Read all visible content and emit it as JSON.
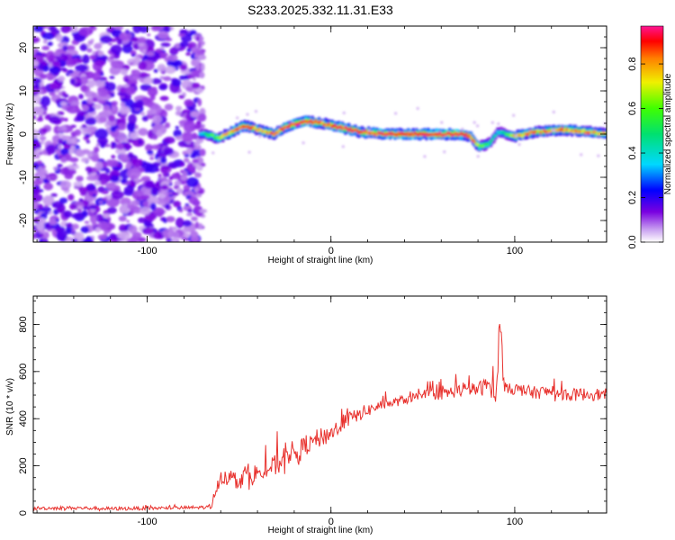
{
  "title": "S233.2025.332.11.31.E33",
  "chart_data": [
    {
      "type": "heatmap",
      "title": "S233.2025.332.11.31.E33",
      "xlabel": "Height of straight line (km)",
      "ylabel": "Frequency (Hz)",
      "xlim": [
        -162,
        150
      ],
      "ylim": [
        -25,
        25
      ],
      "xticks": [
        -100,
        0,
        100
      ],
      "yticks": [
        -20,
        -10,
        0,
        10,
        20
      ],
      "colorbar": {
        "label": "Normalized spectral amplitude",
        "range": [
          0,
          0.97
        ],
        "ticks": [
          0.0,
          0.2,
          0.4,
          0.6,
          0.8
        ],
        "tick_labels": [
          "0.0",
          "0.2",
          "0.4",
          "0.6",
          "0.8"
        ]
      },
      "noise_region": {
        "x_range": [
          -162,
          -72
        ],
        "level": 0.12
      },
      "ridge": {
        "x": [
          -72,
          -68,
          -62,
          -55,
          -48,
          -40,
          -32,
          -24,
          -15,
          -5,
          5,
          15,
          30,
          50,
          70,
          75,
          80,
          86,
          90,
          95,
          100,
          110,
          125,
          140,
          150
        ],
        "frequency": [
          0,
          0,
          -1,
          0.5,
          2,
          1,
          0,
          2,
          3,
          2.5,
          1.5,
          0.5,
          0,
          0,
          0,
          -0.5,
          -3,
          -2,
          0.5,
          0,
          -0.5,
          0.5,
          1,
          0.5,
          0
        ],
        "amplitude": [
          0.3,
          0.5,
          0.6,
          0.8,
          0.9,
          0.7,
          0.8,
          0.85,
          0.95,
          0.8,
          0.9,
          0.85,
          0.9,
          0.95,
          0.95,
          0.9,
          0.6,
          0.45,
          0.3,
          0.5,
          0.8,
          0.75,
          0.8,
          0.75,
          0.7
        ]
      }
    },
    {
      "type": "line",
      "xlabel": "Height of straight line (km)",
      "ylabel": "SNR (10 * v/v)",
      "xlim": [
        -162,
        150
      ],
      "ylim": [
        0,
        920
      ],
      "xticks": [
        -100,
        0,
        100
      ],
      "yticks": [
        0,
        200,
        400,
        600,
        800
      ],
      "series": [
        {
          "name": "SNR",
          "color": "#e8322e",
          "x": [
            -162,
            -140,
            -120,
            -100,
            -80,
            -65,
            -62,
            -58,
            -54,
            -50,
            -46,
            -42,
            -38,
            -34,
            -30,
            -26,
            -22,
            -18,
            -14,
            -10,
            -6,
            -2,
            2,
            6,
            10,
            14,
            18,
            22,
            26,
            30,
            40,
            50,
            60,
            70,
            80,
            85,
            88,
            90,
            92,
            94,
            96,
            100,
            110,
            120,
            130,
            140,
            150
          ],
          "y": [
            20,
            22,
            18,
            20,
            22,
            25,
            130,
            160,
            150,
            140,
            170,
            160,
            180,
            190,
            200,
            230,
            260,
            250,
            290,
            300,
            320,
            330,
            350,
            380,
            400,
            410,
            430,
            440,
            455,
            460,
            480,
            500,
            505,
            520,
            525,
            540,
            560,
            430,
            870,
            520,
            540,
            525,
            510,
            515,
            500,
            505,
            500
          ],
          "noise": [
            15,
            15,
            15,
            15,
            15,
            15,
            80,
            80,
            80,
            85,
            85,
            90,
            90,
            90,
            95,
            95,
            95,
            90,
            90,
            85,
            85,
            80,
            75,
            70,
            65,
            60,
            55,
            50,
            45,
            40,
            40,
            45,
            50,
            55,
            60,
            80,
            150,
            250,
            150,
            80,
            60,
            55,
            55,
            55,
            55,
            55,
            55
          ]
        }
      ]
    }
  ]
}
